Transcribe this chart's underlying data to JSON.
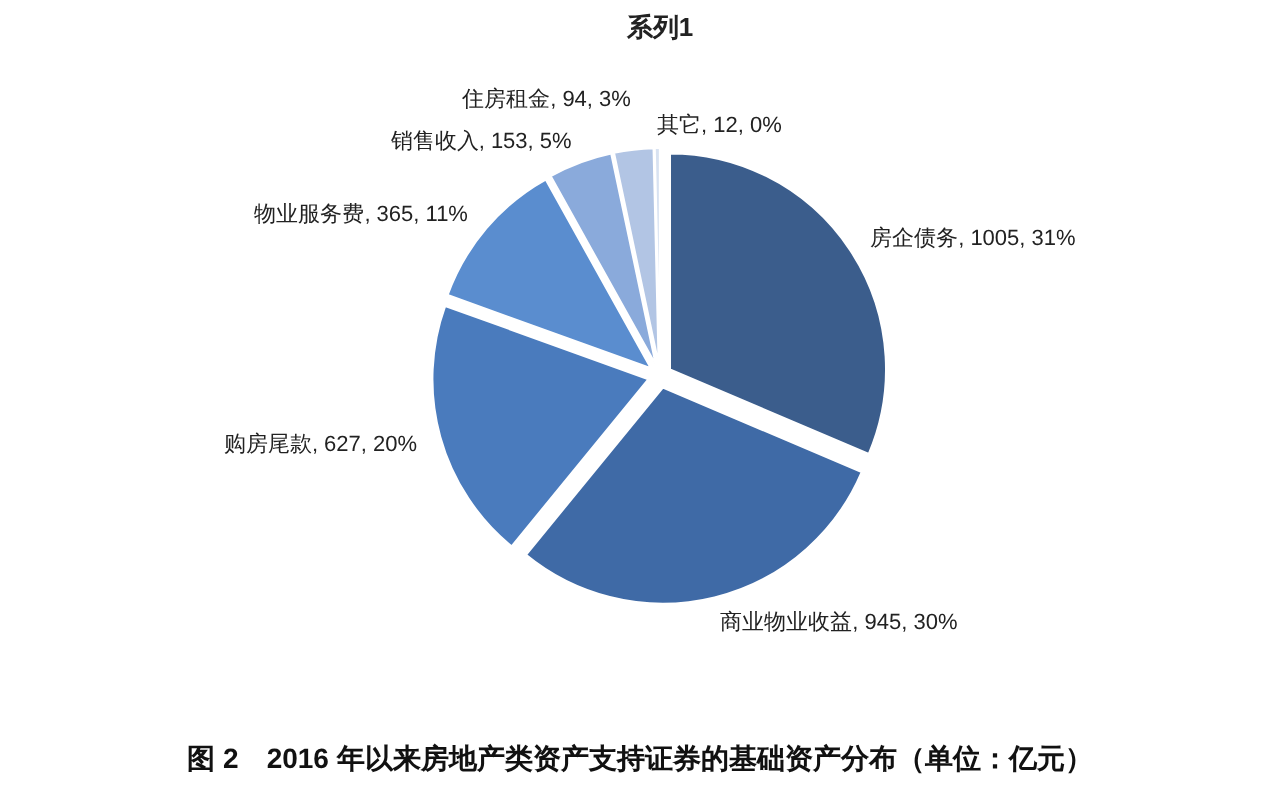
{
  "chart_data": {
    "type": "pie",
    "title": "系列1",
    "categories": [
      "房企债务",
      "商业物业收益",
      "购房尾款",
      "物业服务费",
      "销售收入",
      "住房租金",
      "其它"
    ],
    "values": [
      1005,
      945,
      627,
      365,
      153,
      94,
      12
    ],
    "value_labels": [
      "1005, 31%",
      "945, 30%",
      "627, 20%",
      "365, 11%",
      "153, 5%",
      "94, 3%",
      "12, 0%"
    ],
    "colors": [
      "#3b5d8c",
      "#3f6aa6",
      "#4a7bbd",
      "#5a8dcf",
      "#8aaadb",
      "#b2c5e4",
      "#d8e2f1"
    ],
    "annotations": [
      "图 2　2016 年以来房地产类资产支持证券的基础资产分布（单位：亿元）"
    ]
  }
}
